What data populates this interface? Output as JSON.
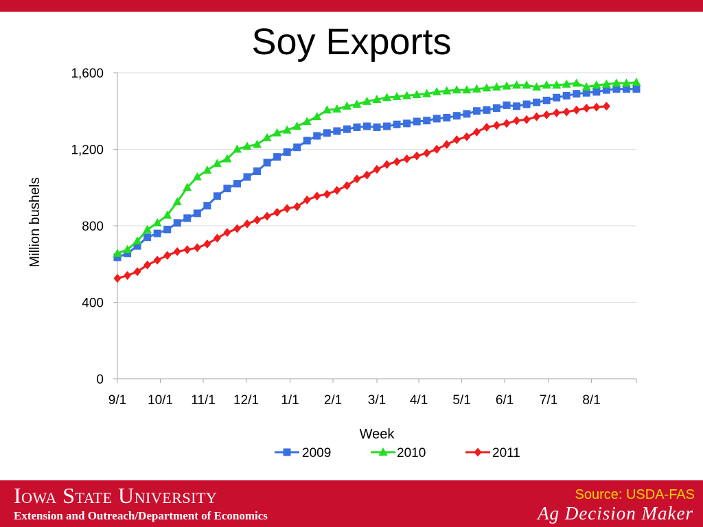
{
  "slide": {
    "title": "Soy Exports"
  },
  "footer": {
    "university": "Iowa State University",
    "department": "Extension and Outreach/Department of Economics",
    "source": "Source: USDA-FAS",
    "brand": "Ag Decision Maker"
  },
  "colors": {
    "accent_red": "#c8102e",
    "source_text": "#ffd100",
    "series_2009": "#3a6fe0",
    "series_2010": "#22dd22",
    "series_2011": "#ee1c1c"
  },
  "chart_data": {
    "type": "line",
    "title": "",
    "xlabel": "Week",
    "ylabel": "Million bushels",
    "ylim": [
      0,
      1600
    ],
    "yticks": [
      "0",
      "400",
      "800",
      "1,200",
      "1,600"
    ],
    "yticks_values": [
      0,
      400,
      800,
      1200,
      1600
    ],
    "xticks": [
      "9/1",
      "10/1",
      "11/1",
      "12/1",
      "1/1",
      "2/1",
      "3/1",
      "4/1",
      "5/1",
      "6/1",
      "7/1",
      "8/1"
    ],
    "xticks_week": [
      0,
      4.3,
      8.6,
      12.9,
      17.3,
      21.6,
      26,
      30.2,
      34.5,
      38.8,
      43.2,
      47.5
    ],
    "x_unit": "week",
    "x_range": [
      0,
      52
    ],
    "grid": true,
    "legend": "bottom",
    "series": [
      {
        "name": "2009",
        "marker": "square",
        "values": [
          635,
          655,
          695,
          740,
          760,
          780,
          815,
          840,
          865,
          905,
          955,
          995,
          1020,
          1055,
          1085,
          1130,
          1160,
          1185,
          1210,
          1245,
          1270,
          1285,
          1295,
          1305,
          1315,
          1320,
          1315,
          1320,
          1330,
          1335,
          1345,
          1350,
          1360,
          1365,
          1375,
          1385,
          1400,
          1405,
          1415,
          1430,
          1425,
          1435,
          1445,
          1455,
          1470,
          1480,
          1490,
          1495,
          1500,
          1510,
          1515,
          1515,
          1515
        ]
      },
      {
        "name": "2010",
        "marker": "triangle",
        "values": [
          655,
          675,
          720,
          780,
          815,
          855,
          925,
          1000,
          1055,
          1090,
          1125,
          1150,
          1200,
          1215,
          1225,
          1260,
          1285,
          1300,
          1320,
          1345,
          1370,
          1405,
          1410,
          1425,
          1435,
          1450,
          1460,
          1470,
          1475,
          1480,
          1485,
          1490,
          1500,
          1505,
          1510,
          1510,
          1515,
          1520,
          1525,
          1530,
          1535,
          1535,
          1525,
          1535,
          1535,
          1540,
          1545,
          1525,
          1535,
          1540,
          1545,
          1545,
          1550
        ]
      },
      {
        "name": "2011",
        "marker": "diamond",
        "values": [
          525,
          540,
          560,
          595,
          620,
          645,
          665,
          675,
          685,
          705,
          735,
          765,
          785,
          810,
          830,
          850,
          870,
          890,
          900,
          935,
          955,
          965,
          985,
          1010,
          1045,
          1065,
          1095,
          1120,
          1135,
          1150,
          1165,
          1180,
          1200,
          1225,
          1250,
          1265,
          1290,
          1315,
          1325,
          1335,
          1350,
          1355,
          1370,
          1380,
          1390,
          1395,
          1405,
          1415,
          1420,
          1425
        ]
      }
    ]
  }
}
